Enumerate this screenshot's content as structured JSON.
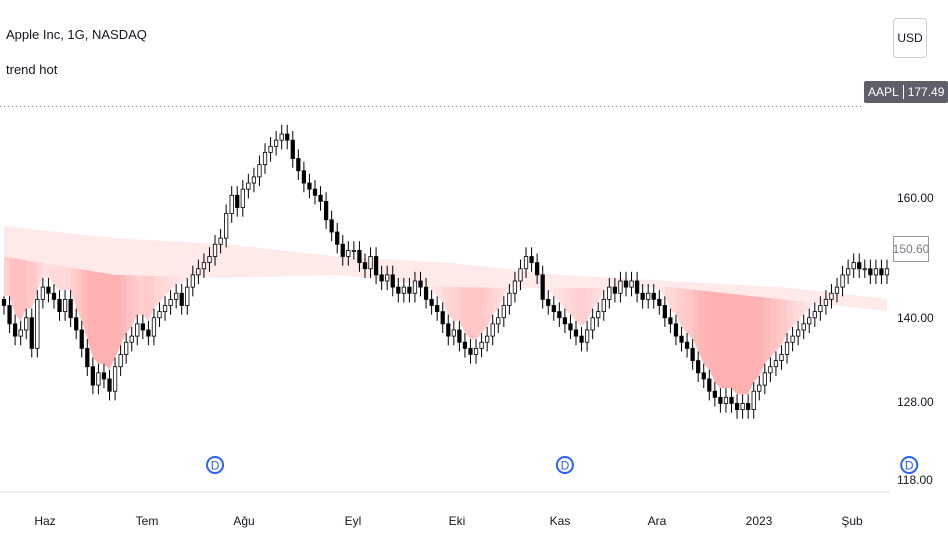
{
  "legend": {
    "title": "Apple Inc, 1G, NASDAQ",
    "indicator": "trend hot"
  },
  "currency": "USD",
  "symbol_tag": {
    "ticker": "AAPL",
    "price": "177.49"
  },
  "last_price_label": "150.60",
  "colors": {
    "up_fill": "#ffffff",
    "down_fill": "#000000",
    "candle_line": "#000000",
    "band": "#ff5252",
    "dotted_line": "#787b86",
    "axis_text": "#131722",
    "event_marker": "#2962ff"
  },
  "chart_data": {
    "type": "candlestick",
    "title": "Apple Inc, 1G, NASDAQ",
    "xlabel": "",
    "ylabel": "",
    "ylim": [
      116.5,
      181.5
    ],
    "y_ticks": [
      "160.00",
      "140.00",
      "128.00",
      "118.00"
    ],
    "x_ticks": [
      "Haz",
      "Tem",
      "Ağu",
      "Eyl",
      "Eki",
      "Kas",
      "Ara",
      "2023",
      "Şub"
    ],
    "reference_line": 177.49,
    "events": [
      {
        "label": "D",
        "day": 38
      },
      {
        "label": "D",
        "day": 101
      },
      {
        "label": "D",
        "day": 163
      }
    ],
    "series": [
      {
        "kind": "close",
        "values": [
          145,
          142,
          140,
          141,
          143,
          138,
          146,
          148,
          147,
          146,
          144,
          146,
          143,
          141,
          138,
          135,
          132,
          134,
          133,
          131,
          135,
          137,
          139,
          140,
          142,
          141,
          140,
          143,
          144,
          145,
          146,
          147,
          145,
          148,
          150,
          151,
          152,
          153,
          155,
          156,
          160,
          163,
          161,
          164,
          165,
          166,
          168,
          170,
          171,
          172,
          173,
          172,
          169,
          167,
          165,
          164,
          163,
          162,
          159,
          157,
          155,
          153,
          154,
          154,
          152,
          151,
          153,
          150,
          149,
          150,
          148,
          147,
          148,
          147,
          149,
          148,
          146,
          145,
          144,
          142,
          140,
          141,
          139,
          138,
          137,
          138,
          139,
          140,
          142,
          143,
          145,
          147,
          149,
          151,
          153,
          152,
          150,
          146,
          145,
          144,
          143,
          142,
          141,
          140,
          139,
          141,
          143,
          144,
          146,
          148,
          147,
          149,
          148,
          149,
          147,
          146,
          147,
          146,
          145,
          143,
          142,
          140,
          139,
          138,
          136,
          134,
          133,
          131,
          130,
          129,
          130,
          129,
          128,
          129,
          128,
          131,
          132,
          134,
          135,
          136,
          137,
          139,
          140,
          141,
          142,
          143,
          144,
          145,
          146,
          147,
          148,
          150,
          151,
          152,
          151,
          151,
          150,
          151,
          150,
          151
        ]
      },
      {
        "kind": "band",
        "name": "trend hot",
        "days": [
          0,
          20,
          40,
          60,
          80,
          100,
          120,
          140,
          160
        ],
        "lower": [
          153,
          150,
          149.5,
          150,
          148,
          147.8,
          148,
          146,
          144
        ],
        "upper": [
          158,
          156,
          155,
          153,
          152,
          150,
          149,
          148,
          146
        ]
      }
    ]
  }
}
